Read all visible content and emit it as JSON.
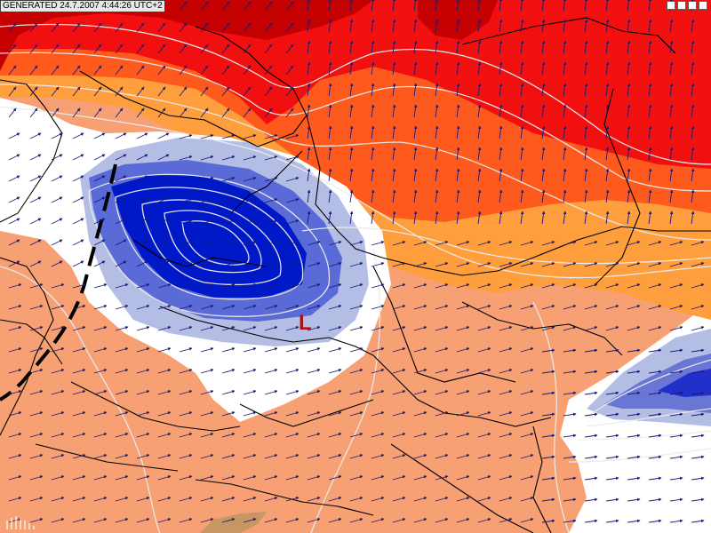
{
  "header": {
    "generated_label": "GENERATED 24.7.2007 4:44:26 UTC+2"
  },
  "map": {
    "low_pressure_label": "L",
    "colors": {
      "dark_red": "#c40000",
      "red": "#f20f0f",
      "red_orange": "#ff5a1e",
      "orange": "#ff9e3c",
      "light_orange": "#f6a073",
      "white": "#ffffff",
      "light_blue": "#b4bde4",
      "mid_blue": "#5a6ad6",
      "deep_blue": "#0019c8",
      "land_tan": "#c89664",
      "border_black": "#000000",
      "isoline_white": "#ececec",
      "arrow_navy": "#1a1a7a",
      "front_black": "#000000"
    },
    "icons": {
      "corner_buttons": "window-control-icons",
      "logo": "logo-icon"
    }
  }
}
